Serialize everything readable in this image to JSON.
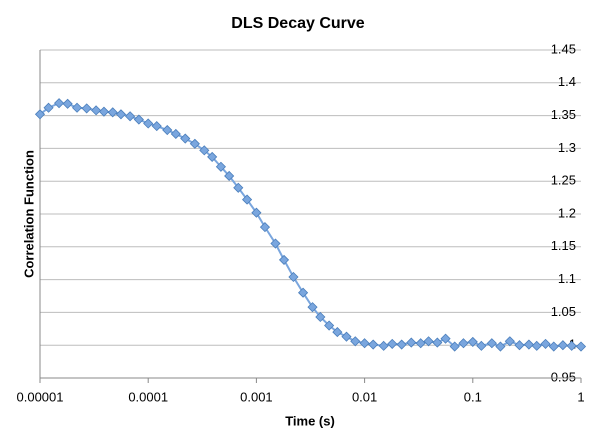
{
  "chart_data": {
    "type": "line",
    "title": "DLS Decay Curve",
    "x_label": "Time (s)",
    "y_label": "Correlation Function",
    "xscale": "log",
    "grid": true,
    "marker": "diamond",
    "xlim": [
      1e-05,
      1
    ],
    "xticks": [
      1e-05,
      0.0001,
      0.001,
      0.01,
      0.1,
      1
    ],
    "ylim": [
      0.95,
      1.45
    ],
    "yticks": [
      0.95,
      1,
      1.05,
      1.1,
      1.15,
      1.2,
      1.25,
      1.3,
      1.35,
      1.4,
      1.45
    ],
    "x": [
      1e-05,
      1.2e-05,
      1.5e-05,
      1.8e-05,
      2.2e-05,
      2.7e-05,
      3.3e-05,
      3.9e-05,
      4.7e-05,
      5.6e-05,
      6.8e-05,
      8.2e-05,
      0.0001,
      0.00012,
      0.00015,
      0.00018,
      0.00022,
      0.00027,
      0.00033,
      0.00039,
      0.00047,
      0.00056,
      0.00068,
      0.00082,
      0.001,
      0.0012,
      0.0015,
      0.0018,
      0.0022,
      0.0027,
      0.0033,
      0.0039,
      0.0047,
      0.0056,
      0.0068,
      0.0082,
      0.01,
      0.012,
      0.015,
      0.018,
      0.022,
      0.027,
      0.033,
      0.039,
      0.047,
      0.056,
      0.068,
      0.082,
      0.1,
      0.12,
      0.15,
      0.18,
      0.22,
      0.27,
      0.33,
      0.39,
      0.47,
      0.56,
      0.68,
      0.82,
      1
    ],
    "series": [
      {
        "color": "#7aa6de",
        "values": [
          1.352,
          1.362,
          1.369,
          1.368,
          1.362,
          1.361,
          1.358,
          1.356,
          1.355,
          1.352,
          1.349,
          1.344,
          1.338,
          1.334,
          1.328,
          1.322,
          1.315,
          1.307,
          1.297,
          1.287,
          1.272,
          1.258,
          1.24,
          1.222,
          1.202,
          1.18,
          1.155,
          1.13,
          1.104,
          1.08,
          1.058,
          1.043,
          1.03,
          1.02,
          1.013,
          1.006,
          1.003,
          1.001,
          0.999,
          1.002,
          1.001,
          1.004,
          1.003,
          1.006,
          1.004,
          1.01,
          0.998,
          1.003,
          1.005,
          0.999,
          1.003,
          0.998,
          1.006,
          1,
          1.001,
          0.999,
          1.002,
          0.998,
          1,
          0.999,
          0.998
        ]
      }
    ]
  }
}
